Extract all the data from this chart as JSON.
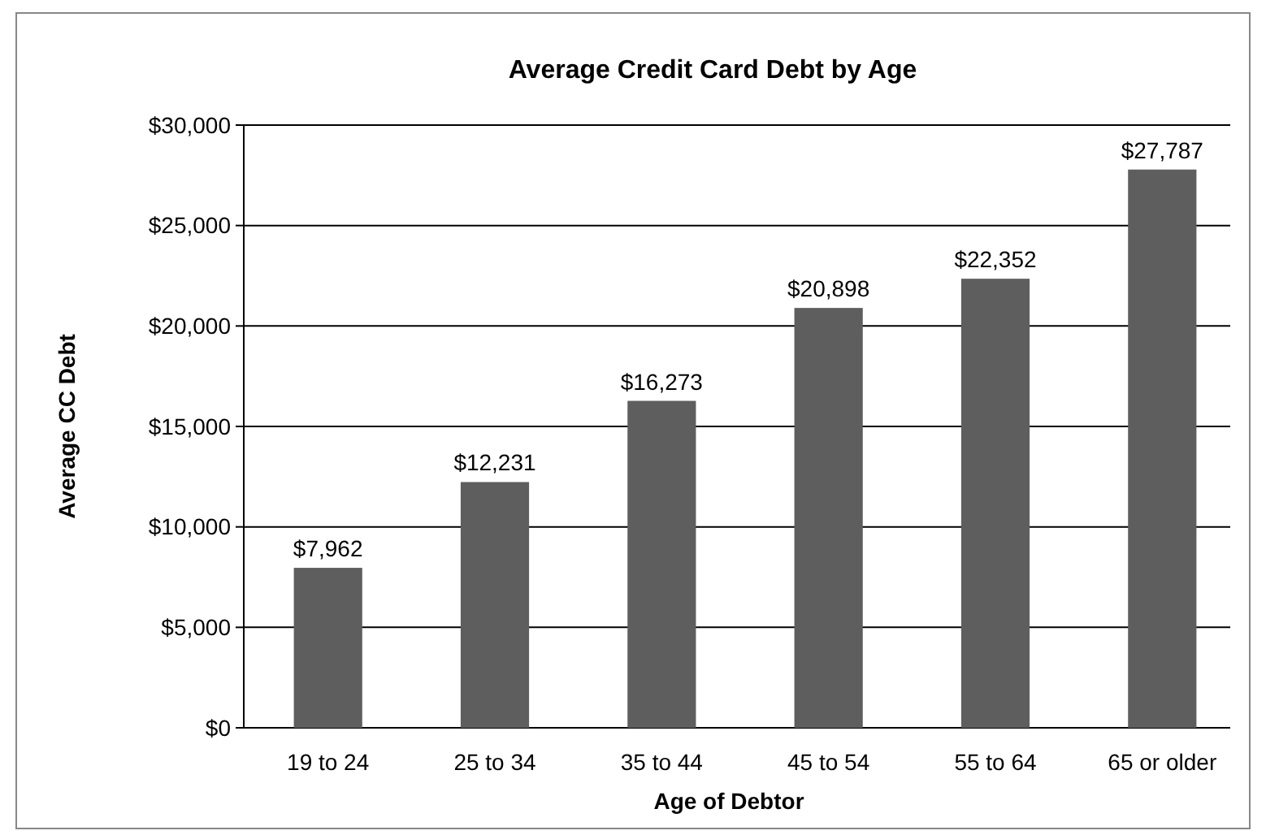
{
  "chart_data": {
    "type": "bar",
    "title": "Average Credit Card Debt by Age",
    "xlabel": "Age of Debtor",
    "ylabel": "Average CC Debt",
    "categories": [
      "19 to 24",
      "25 to 34",
      "35 to 44",
      "45 to 54",
      "55 to 64",
      "65 or older"
    ],
    "values": [
      7962,
      12231,
      16273,
      20898,
      22352,
      27787
    ],
    "color": "#5e5e5e",
    "value_labels": [
      "$7,962",
      "$12,231",
      "$16,273",
      "$20,898",
      "$22,352",
      "$27,787"
    ],
    "ylim": [
      0,
      30000
    ],
    "yticks": [
      {
        "value": 0,
        "label": "$0"
      },
      {
        "value": 5000,
        "label": "$5,000"
      },
      {
        "value": 10000,
        "label": "$10,000"
      },
      {
        "value": 15000,
        "label": "$15,000"
      },
      {
        "value": 20000,
        "label": "$20,000"
      },
      {
        "value": 25000,
        "label": "$25,000"
      },
      {
        "value": 30000,
        "label": "$30,000"
      }
    ],
    "grid": "y"
  }
}
